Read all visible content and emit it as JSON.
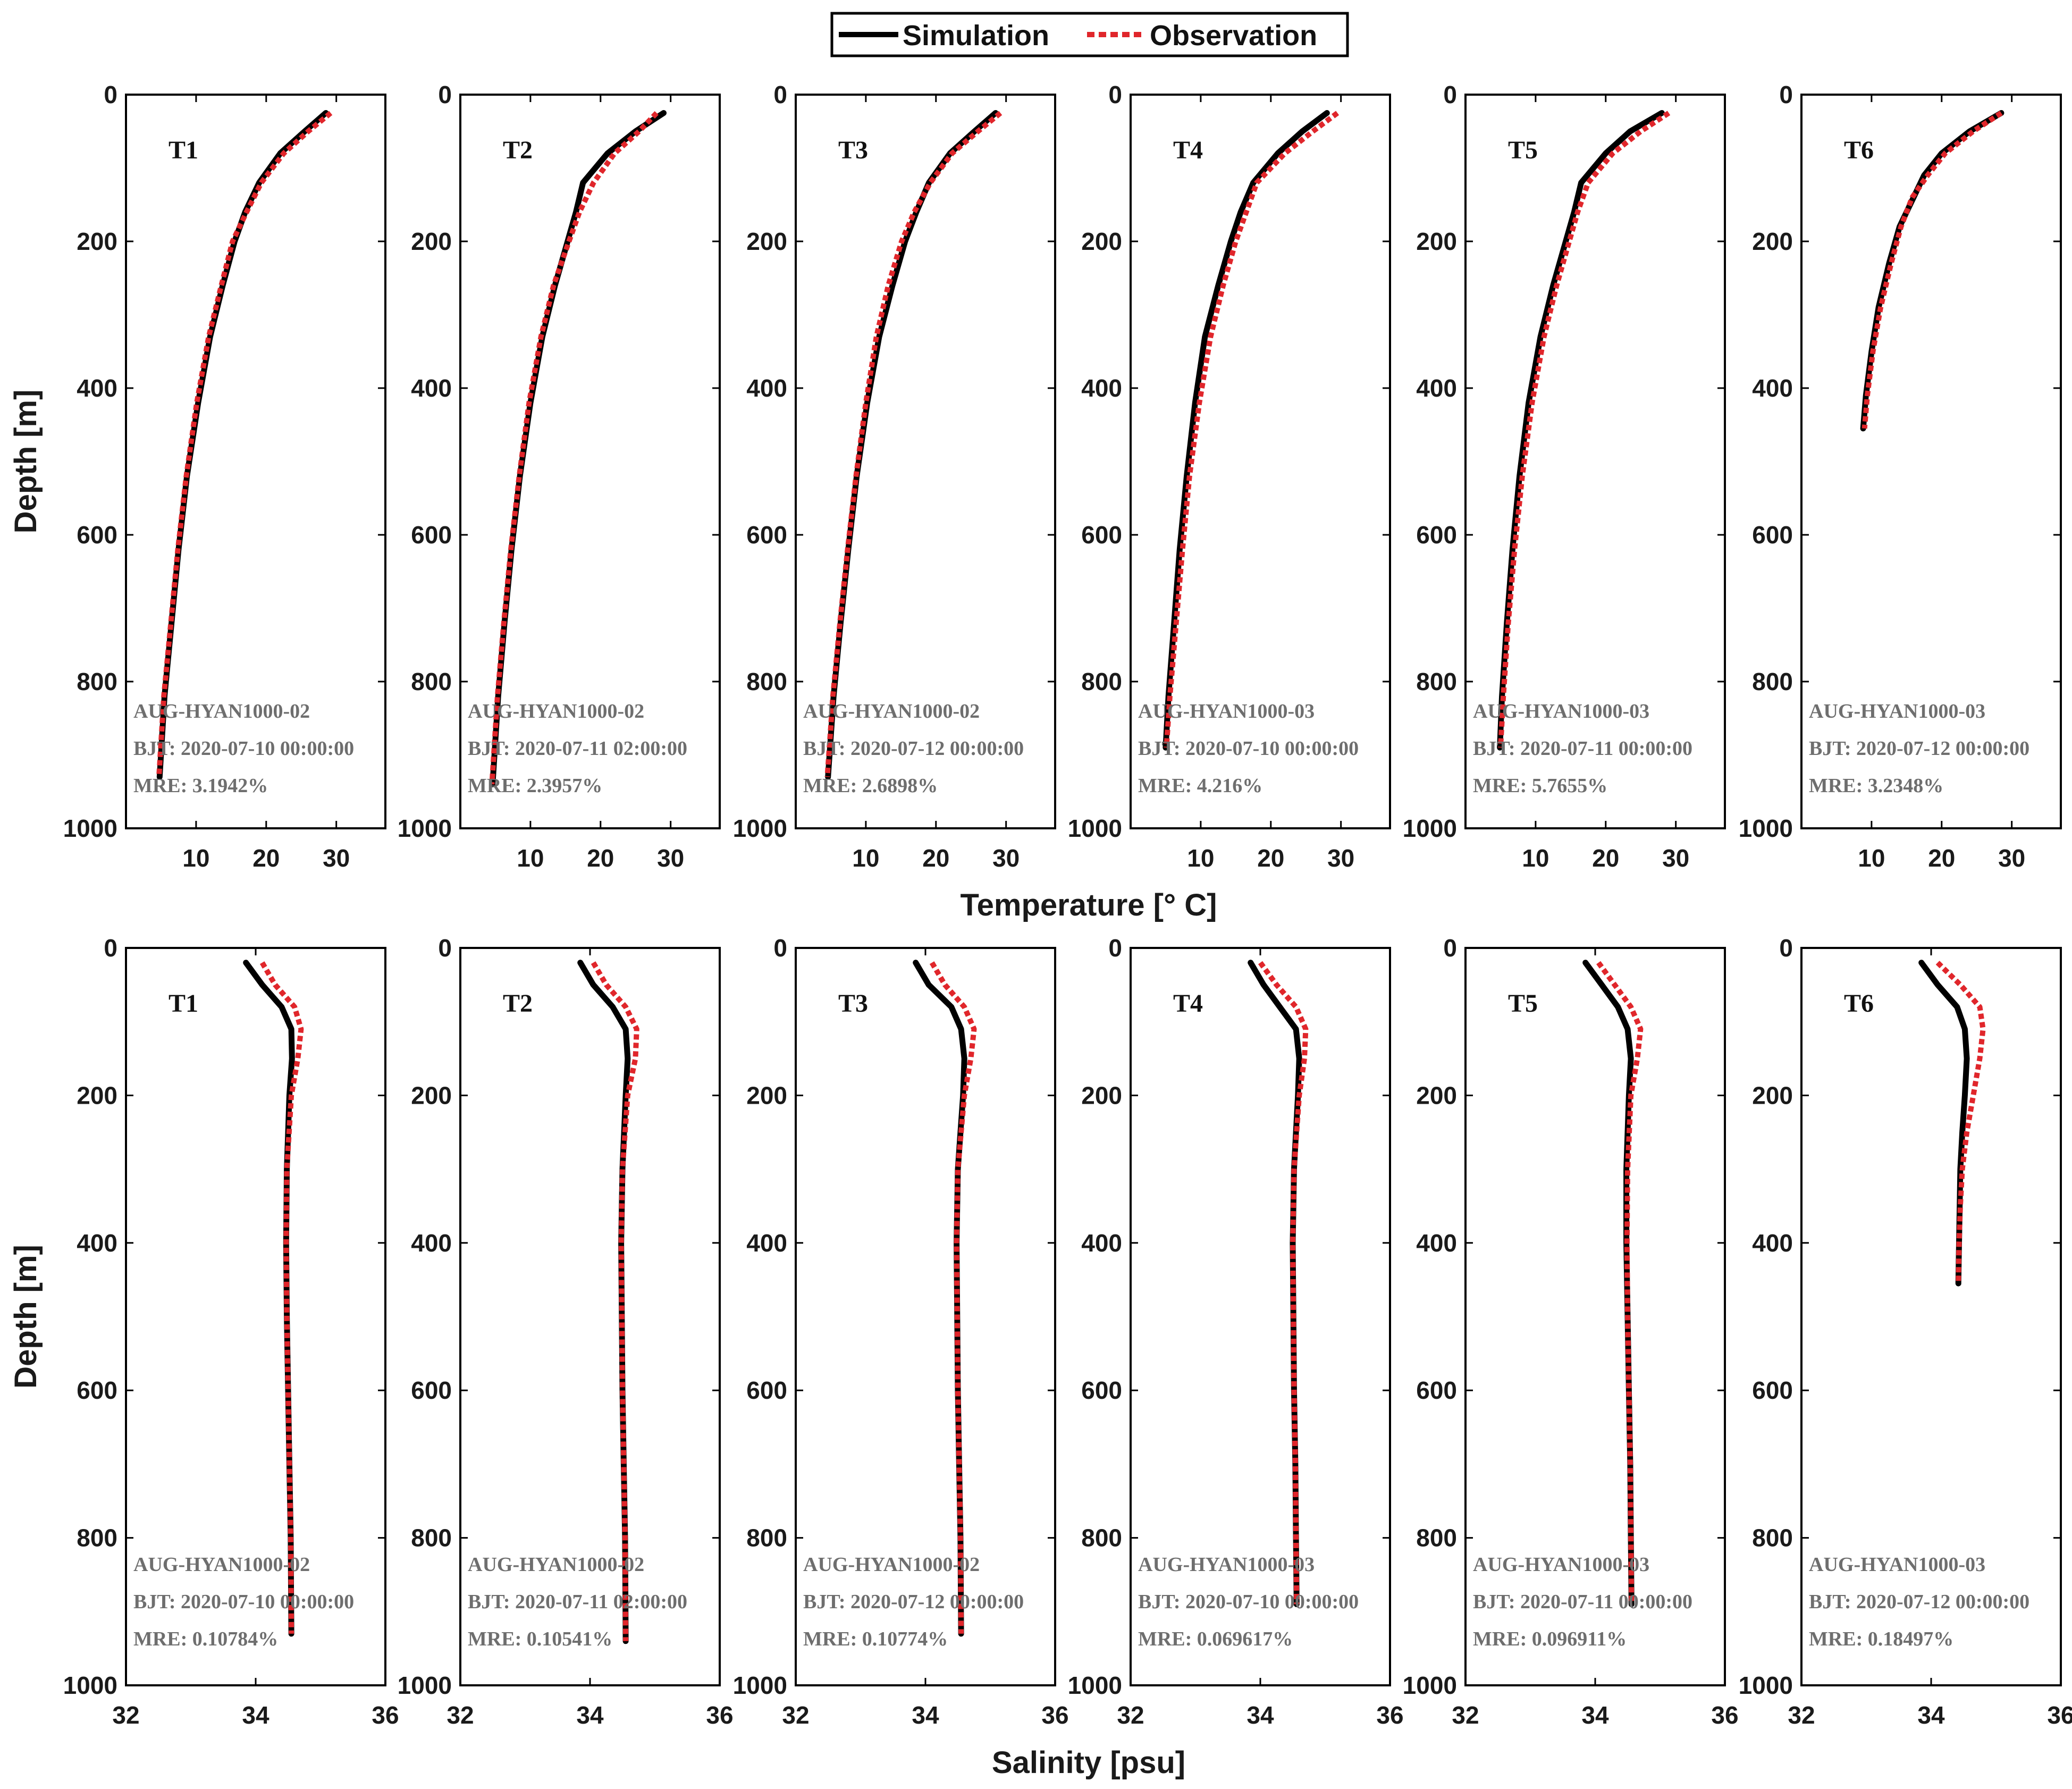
{
  "legend": {
    "simulation": "Simulation",
    "observation": "Observation"
  },
  "colors": {
    "simulation": "#000000",
    "observation": "#e0262b",
    "annotation": "#6e6e6e"
  },
  "chart_data": [
    {
      "type": "line",
      "row": "temperature",
      "xlabel": "Temperature [° C]",
      "ylabel": "Depth [m]",
      "xlim": [
        0,
        37
      ],
      "ylim": [
        0,
        1000
      ],
      "y_reversed": true,
      "xticks": [
        10,
        20,
        30
      ],
      "yticks": [
        0,
        200,
        400,
        600,
        800,
        1000
      ],
      "panels": [
        {
          "title": "T1",
          "station": "AUG-HYAN1000-02",
          "bjt": "BJT: 2020-07-10 00:00:00",
          "mre": "MRE: 3.1942%",
          "simulation": {
            "depth": [
              25,
              50,
              80,
              120,
              160,
              200,
              260,
              330,
              420,
              520,
              620,
              720,
              820,
              930
            ],
            "value": [
              28.5,
              25.5,
              22.0,
              19.0,
              17.0,
              15.5,
              13.8,
              12.0,
              10.3,
              8.7,
              7.5,
              6.5,
              5.5,
              4.8
            ]
          },
          "observation": {
            "depth": [
              25,
              50,
              80,
              120,
              160,
              200,
              260,
              330,
              420,
              520,
              620,
              720,
              820,
              930
            ],
            "value": [
              29.2,
              26.0,
              22.5,
              19.3,
              17.2,
              15.2,
              13.6,
              11.8,
              10.1,
              8.6,
              7.4,
              6.4,
              5.4,
              4.7
            ]
          }
        },
        {
          "title": "T2",
          "station": "AUG-HYAN1000-02",
          "bjt": "BJT: 2020-07-11 02:00:00",
          "mre": "MRE: 2.3957%",
          "simulation": {
            "depth": [
              25,
              50,
              80,
              120,
              160,
              200,
              260,
              330,
              420,
              520,
              620,
              720,
              820,
              940
            ],
            "value": [
              29.0,
              25.0,
              21.0,
              17.5,
              16.5,
              15.3,
              13.5,
              11.7,
              10.0,
              8.5,
              7.3,
              6.3,
              5.4,
              4.6
            ]
          },
          "observation": {
            "depth": [
              25,
              50,
              80,
              120,
              160,
              200,
              260,
              330,
              420,
              520,
              620,
              720,
              820,
              940
            ],
            "value": [
              28.0,
              25.5,
              22.0,
              19.0,
              17.0,
              15.5,
              13.3,
              11.5,
              9.8,
              8.4,
              7.2,
              6.2,
              5.3,
              4.5
            ]
          }
        },
        {
          "title": "T3",
          "station": "AUG-HYAN1000-02",
          "bjt": "BJT: 2020-07-12 00:00:00",
          "mre": "MRE: 2.6898%",
          "simulation": {
            "depth": [
              25,
              50,
              80,
              120,
              160,
              200,
              260,
              330,
              420,
              520,
              620,
              720,
              820,
              930
            ],
            "value": [
              28.5,
              25.5,
              22.0,
              19.0,
              17.2,
              15.6,
              13.8,
              11.9,
              10.2,
              8.7,
              7.5,
              6.4,
              5.4,
              4.6
            ]
          },
          "observation": {
            "depth": [
              25,
              50,
              80,
              120,
              160,
              200,
              260,
              330,
              420,
              520,
              620,
              720,
              820,
              930
            ],
            "value": [
              29.2,
              26.0,
              22.3,
              19.2,
              16.9,
              15.1,
              13.2,
              11.5,
              10.0,
              8.6,
              7.4,
              6.3,
              5.3,
              4.5
            ]
          }
        },
        {
          "title": "T4",
          "station": "AUG-HYAN1000-03",
          "bjt": "BJT: 2020-07-10 00:00:00",
          "mre": "MRE: 4.216%",
          "simulation": {
            "depth": [
              25,
              50,
              80,
              120,
              160,
              200,
              260,
              330,
              420,
              520,
              620,
              720,
              820,
              890
            ],
            "value": [
              28.0,
              24.5,
              21.0,
              17.5,
              15.7,
              14.3,
              12.5,
              10.6,
              9.2,
              8.0,
              7.0,
              6.2,
              5.4,
              5.0
            ]
          },
          "observation": {
            "depth": [
              25,
              50,
              80,
              120,
              160,
              200,
              260,
              330,
              420,
              520,
              620,
              720,
              820,
              890
            ],
            "value": [
              29.5,
              26.0,
              22.0,
              18.0,
              16.5,
              15.0,
              13.2,
              11.4,
              9.8,
              8.4,
              7.4,
              6.5,
              5.6,
              5.1
            ]
          }
        },
        {
          "title": "T5",
          "station": "AUG-HYAN1000-03",
          "bjt": "BJT: 2020-07-11 00:00:00",
          "mre": "MRE: 5.7655%",
          "simulation": {
            "depth": [
              25,
              50,
              80,
              120,
              160,
              200,
              260,
              330,
              420,
              520,
              620,
              720,
              820,
              890
            ],
            "value": [
              28.0,
              23.5,
              20.0,
              16.5,
              15.5,
              14.3,
              12.5,
              10.7,
              9.0,
              7.7,
              6.7,
              5.9,
              5.2,
              4.9
            ]
          },
          "observation": {
            "depth": [
              25,
              50,
              80,
              120,
              160,
              200,
              260,
              330,
              420,
              520,
              620,
              720,
              820,
              890
            ],
            "value": [
              29.0,
              25.0,
              21.0,
              17.5,
              16.0,
              14.8,
              13.0,
              11.2,
              9.5,
              8.1,
              7.0,
              6.1,
              5.4,
              5.0
            ]
          }
        },
        {
          "title": "T6",
          "station": "AUG-HYAN1000-03",
          "bjt": "BJT: 2020-07-12 00:00:00",
          "mre": "MRE: 3.2348%",
          "simulation": {
            "depth": [
              25,
              50,
              80,
              110,
              140,
              180,
              230,
              290,
              350,
              410,
              455
            ],
            "value": [
              28.5,
              24.0,
              20.0,
              17.5,
              16.0,
              14.0,
              12.5,
              11.0,
              10.0,
              9.2,
              8.8
            ]
          },
          "observation": {
            "depth": [
              25,
              50,
              80,
              110,
              140,
              180,
              230,
              290,
              350,
              410,
              455
            ],
            "value": [
              28.5,
              24.5,
              20.5,
              18.0,
              15.8,
              14.2,
              12.8,
              11.3,
              10.2,
              9.4,
              9.0
            ]
          }
        }
      ]
    },
    {
      "type": "line",
      "row": "salinity",
      "xlabel": "Salinity [psu]",
      "ylabel": "Depth [m]",
      "xlim": [
        32,
        36
      ],
      "ylim": [
        0,
        1000
      ],
      "y_reversed": true,
      "xticks": [
        32,
        34,
        36
      ],
      "yticks": [
        0,
        200,
        400,
        600,
        800,
        1000
      ],
      "panels": [
        {
          "title": "T1",
          "station": "AUG-HYAN1000-02",
          "bjt": "BJT: 2020-07-10 00:00:00",
          "mre": "MRE: 0.10784%",
          "simulation": {
            "depth": [
              20,
              50,
              80,
              110,
              150,
              200,
              300,
              400,
              500,
              600,
              700,
              800,
              930
            ],
            "value": [
              33.85,
              34.1,
              34.4,
              34.55,
              34.56,
              34.52,
              34.48,
              34.47,
              34.48,
              34.5,
              34.52,
              34.54,
              34.55
            ]
          },
          "observation": {
            "depth": [
              20,
              50,
              80,
              110,
              150,
              200,
              300,
              400,
              500,
              600,
              700,
              800,
              930
            ],
            "value": [
              34.1,
              34.3,
              34.6,
              34.7,
              34.65,
              34.55,
              34.48,
              34.47,
              34.48,
              34.5,
              34.52,
              34.54,
              34.55
            ]
          }
        },
        {
          "title": "T2",
          "station": "AUG-HYAN1000-02",
          "bjt": "BJT: 2020-07-11 02:00:00",
          "mre": "MRE: 0.10541%",
          "simulation": {
            "depth": [
              20,
              50,
              80,
              110,
              150,
              200,
              300,
              400,
              500,
              600,
              700,
              800,
              940
            ],
            "value": [
              33.85,
              34.05,
              34.35,
              34.55,
              34.58,
              34.55,
              34.5,
              34.48,
              34.49,
              34.5,
              34.52,
              34.54,
              34.55
            ]
          },
          "observation": {
            "depth": [
              20,
              50,
              80,
              110,
              150,
              200,
              300,
              400,
              500,
              600,
              700,
              800,
              940
            ],
            "value": [
              34.05,
              34.25,
              34.55,
              34.72,
              34.7,
              34.58,
              34.5,
              34.48,
              34.49,
              34.5,
              34.52,
              34.54,
              34.55
            ]
          }
        },
        {
          "title": "T3",
          "station": "AUG-HYAN1000-02",
          "bjt": "BJT: 2020-07-12 00:00:00",
          "mre": "MRE: 0.10774%",
          "simulation": {
            "depth": [
              20,
              50,
              80,
              110,
              150,
              200,
              300,
              400,
              500,
              600,
              700,
              800,
              930
            ],
            "value": [
              33.85,
              34.05,
              34.4,
              34.55,
              34.6,
              34.58,
              34.5,
              34.48,
              34.49,
              34.5,
              34.52,
              34.54,
              34.55
            ]
          },
          "observation": {
            "depth": [
              20,
              50,
              80,
              110,
              150,
              200,
              300,
              400,
              500,
              600,
              700,
              800,
              930
            ],
            "value": [
              34.1,
              34.3,
              34.6,
              34.75,
              34.7,
              34.6,
              34.5,
              34.48,
              34.49,
              34.5,
              34.52,
              34.54,
              34.55
            ]
          }
        },
        {
          "title": "T4",
          "station": "AUG-HYAN1000-03",
          "bjt": "BJT: 2020-07-10 00:00:00",
          "mre": "MRE: 0.069617%",
          "simulation": {
            "depth": [
              20,
              50,
              80,
              110,
              150,
              200,
              300,
              400,
              500,
              600,
              700,
              800,
              890
            ],
            "value": [
              33.85,
              34.05,
              34.3,
              34.55,
              34.6,
              34.58,
              34.52,
              34.5,
              34.51,
              34.52,
              34.54,
              34.55,
              34.56
            ]
          },
          "observation": {
            "depth": [
              20,
              50,
              80,
              110,
              150,
              200,
              300,
              400,
              500,
              600,
              700,
              800,
              890
            ],
            "value": [
              34.0,
              34.25,
              34.55,
              34.7,
              34.68,
              34.6,
              34.52,
              34.5,
              34.51,
              34.52,
              34.54,
              34.55,
              34.56
            ]
          }
        },
        {
          "title": "T5",
          "station": "AUG-HYAN1000-03",
          "bjt": "BJT: 2020-07-11 00:00:00",
          "mre": "MRE: 0.096911%",
          "simulation": {
            "depth": [
              20,
              50,
              80,
              110,
              150,
              200,
              300,
              400,
              500,
              600,
              700,
              800,
              890
            ],
            "value": [
              33.85,
              34.1,
              34.35,
              34.5,
              34.55,
              34.52,
              34.48,
              34.48,
              34.5,
              34.52,
              34.54,
              34.55,
              34.56
            ]
          },
          "observation": {
            "depth": [
              20,
              50,
              80,
              110,
              150,
              200,
              300,
              400,
              500,
              600,
              700,
              800,
              890
            ],
            "value": [
              34.05,
              34.3,
              34.55,
              34.7,
              34.65,
              34.55,
              34.5,
              34.49,
              34.5,
              34.52,
              34.54,
              34.55,
              34.56
            ]
          }
        },
        {
          "title": "T6",
          "station": "AUG-HYAN1000-03",
          "bjt": "BJT: 2020-07-12 00:00:00",
          "mre": "MRE: 0.18497%",
          "simulation": {
            "depth": [
              20,
              50,
              80,
              110,
              150,
              200,
              250,
              300,
              350,
              400,
              455
            ],
            "value": [
              33.85,
              34.1,
              34.4,
              34.52,
              34.55,
              34.52,
              34.48,
              34.45,
              34.44,
              34.43,
              34.42
            ]
          },
          "observation": {
            "depth": [
              20,
              50,
              80,
              110,
              150,
              200,
              250,
              300,
              350,
              400,
              455
            ],
            "value": [
              34.1,
              34.45,
              34.75,
              34.8,
              34.75,
              34.65,
              34.55,
              34.48,
              34.45,
              34.43,
              34.42
            ]
          }
        }
      ]
    }
  ]
}
